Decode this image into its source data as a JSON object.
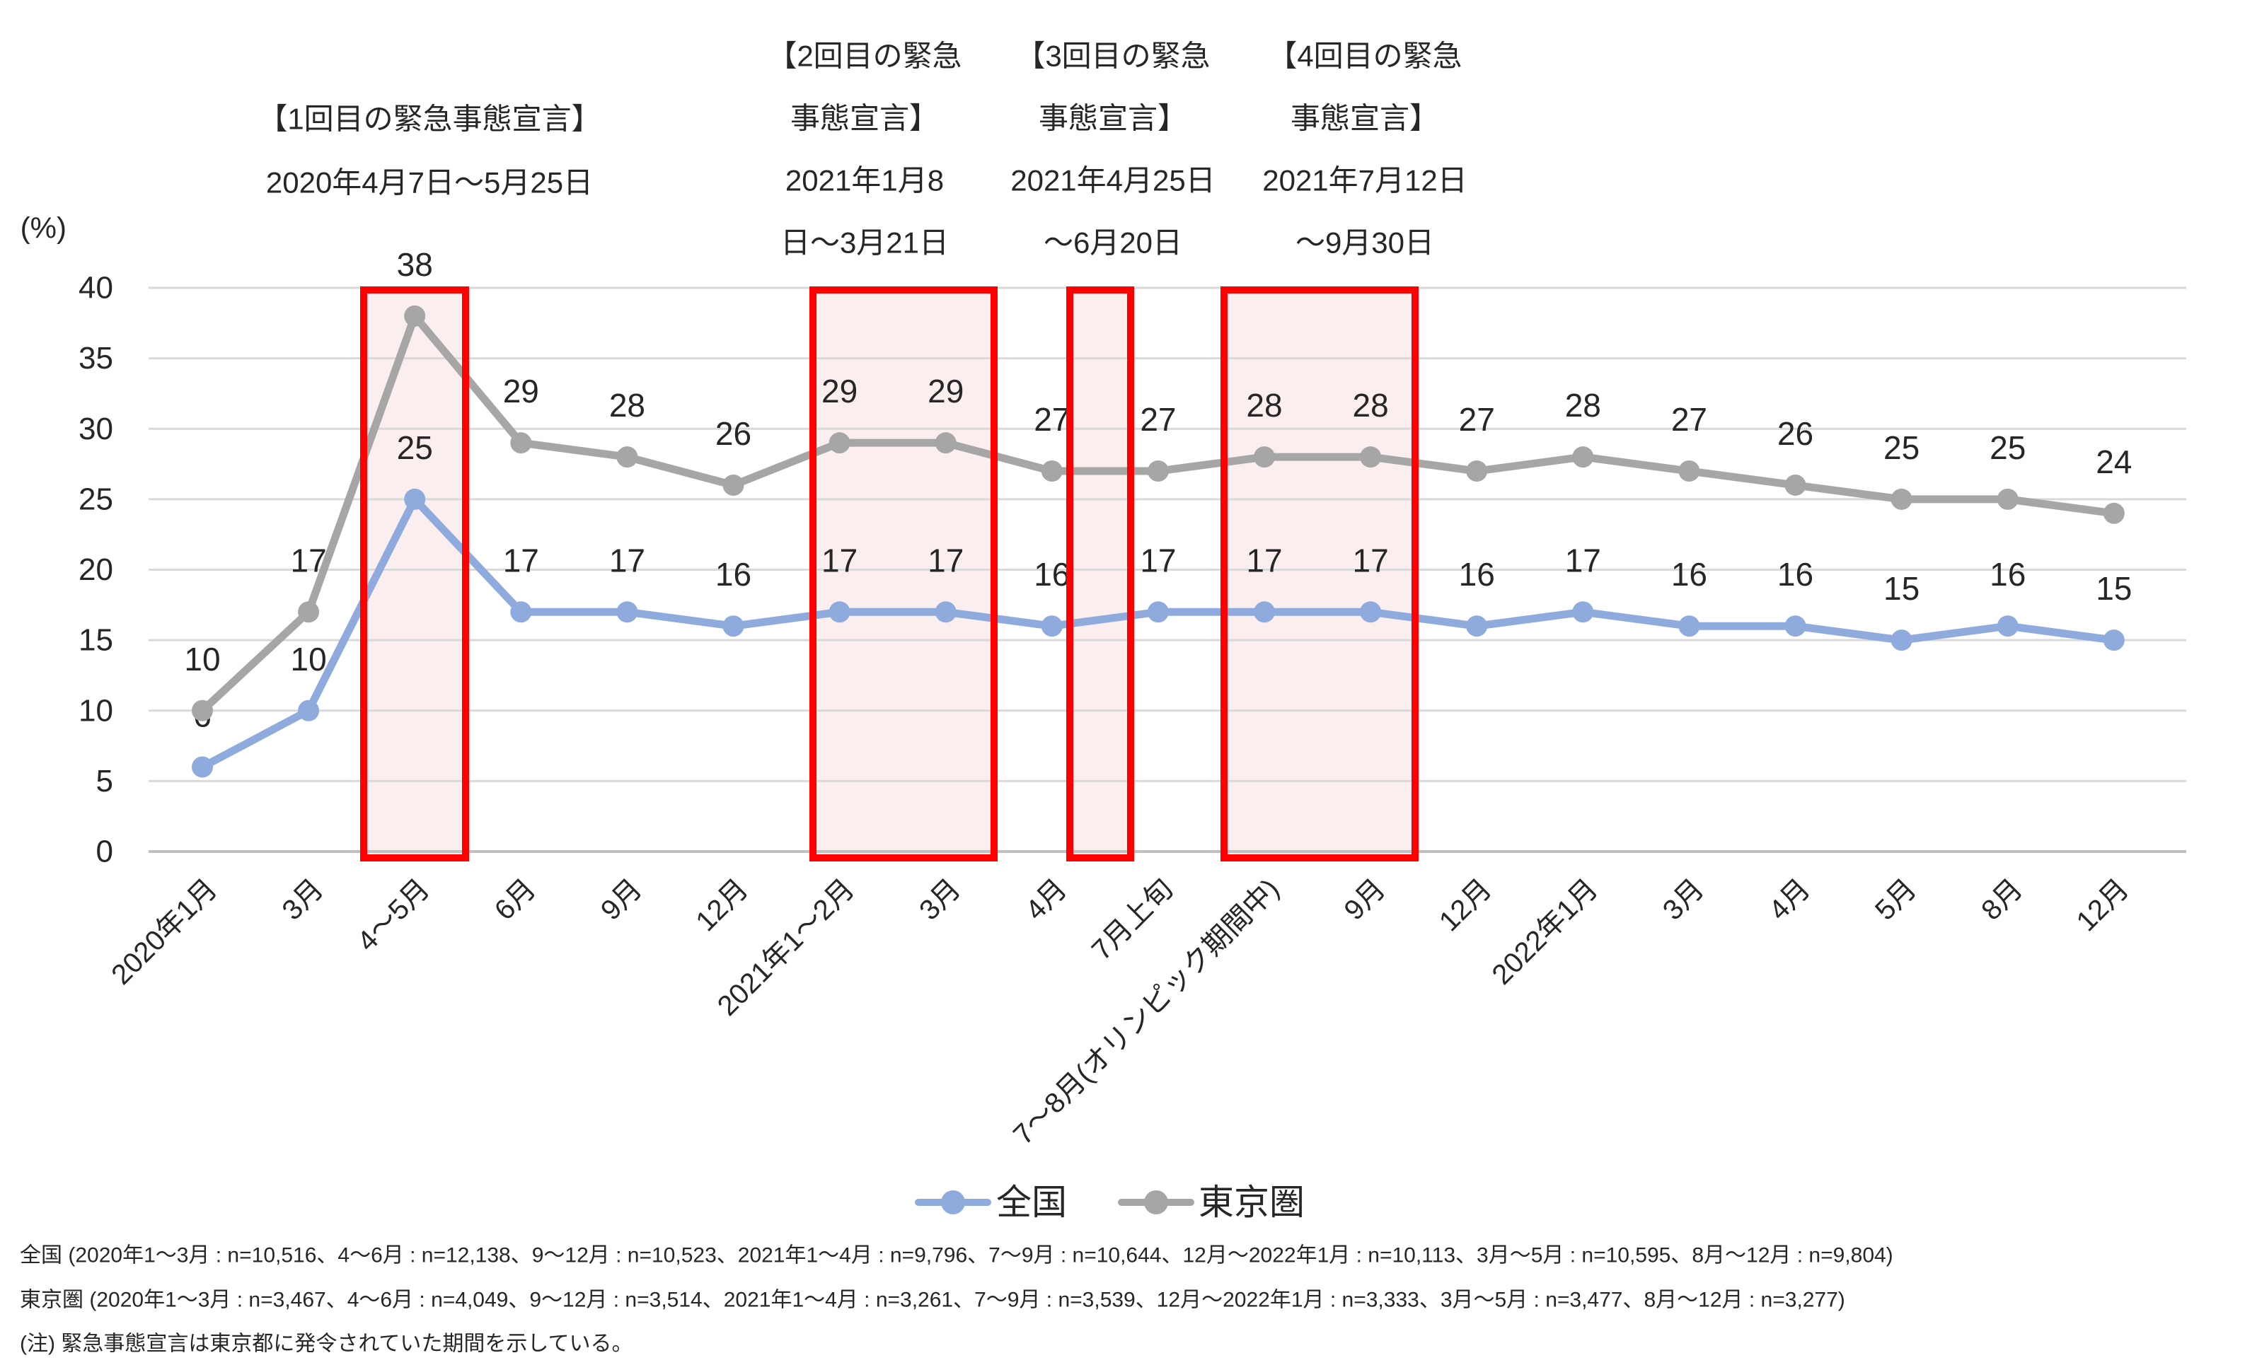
{
  "chart_data": {
    "type": "line",
    "unit_label": "(%)",
    "ylim": [
      0,
      40
    ],
    "ytick_step": 5,
    "grid": true,
    "legend_position": "bottom",
    "text_color": "#262626",
    "grid_color": "#D9D9D9",
    "axis_color": "#C0C0C0",
    "categories": [
      "2020年1月",
      "3月",
      "4〜5月",
      "6月",
      "9月",
      "12月",
      "2021年1〜2月",
      "3月",
      "4月",
      "7月上旬",
      "7〜8月(オリンピック期間中)",
      "9月",
      "12月",
      "2022年1月",
      "3月",
      "4月",
      "5月",
      "8月",
      "12月"
    ],
    "series": [
      {
        "name": "全国",
        "color": "#8FAADC",
        "values": [
          6,
          10,
          25,
          17,
          17,
          16,
          17,
          17,
          16,
          17,
          17,
          17,
          16,
          17,
          16,
          16,
          15,
          16,
          15
        ]
      },
      {
        "name": "東京圏",
        "color": "#A6A6A6",
        "values": [
          10,
          17,
          38,
          29,
          28,
          26,
          29,
          29,
          27,
          27,
          28,
          28,
          27,
          28,
          27,
          26,
          25,
          25,
          24
        ]
      }
    ],
    "emergency_annotations": [
      {
        "lines": [
          "【1回目の緊急事態宣言】",
          "2020年4月7日〜5月25日"
        ]
      },
      {
        "lines": [
          "【2回目の緊急",
          "事態宣言】",
          "2021年1月8",
          "日〜3月21日"
        ]
      },
      {
        "lines": [
          "【3回目の緊急",
          "事態宣言】",
          "2021年4月25日",
          "〜6月20日"
        ]
      },
      {
        "lines": [
          "【4回目の緊急",
          "事態宣言】",
          "2021年7月12日",
          "〜9月30日"
        ]
      }
    ],
    "highlight_boxes": [
      {
        "x1": 514,
        "x2": 658
      },
      {
        "x1": 1149,
        "x2": 1405
      },
      {
        "x1": 1512,
        "x2": 1598
      },
      {
        "x1": 1730,
        "x2": 2000
      }
    ],
    "highlight_border_color": "#FF0000",
    "highlight_fill_color": "#FBEEEF",
    "notes": [
      "全国 (2020年1〜3月 : n=10,516、4〜6月 : n=12,138、9〜12月 : n=10,523、2021年1〜4月 : n=9,796、7〜9月 : n=10,644、12月〜2022年1月 : n=10,113、3月〜5月 : n=10,595、8月〜12月 : n=9,804)",
      "東京圏 (2020年1〜3月 : n=3,467、4〜6月 : n=4,049、9〜12月 : n=3,514、2021年1〜4月 : n=3,261、7〜9月 : n=3,539、12月〜2022年1月 : n=3,333、3月〜5月 : n=3,477、8月〜12月 : n=3,277)",
      "(注) 緊急事態宣言は東京都に発令されていた期間を示している。"
    ]
  }
}
